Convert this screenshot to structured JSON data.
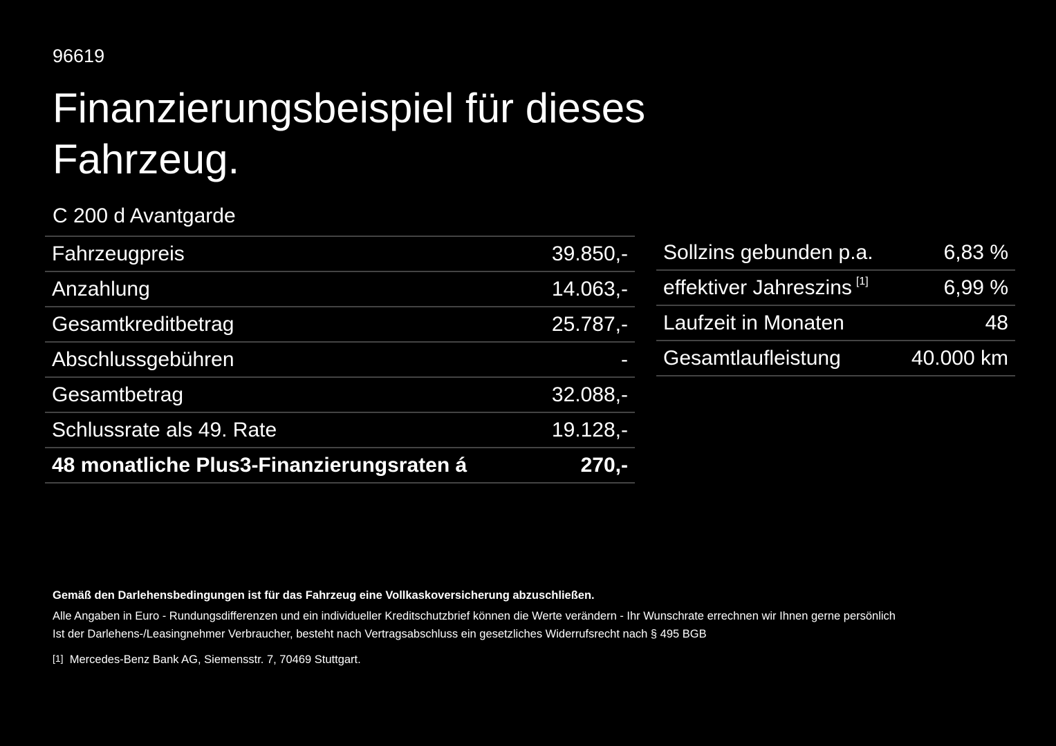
{
  "header": {
    "id": "96619",
    "title_line1": "Finanzierungsbeispiel für dieses",
    "title_line2": "Fahrzeug."
  },
  "model": "C 200 d Avantgarde",
  "left_table": {
    "rows": [
      [
        "Fahrzeugpreis",
        "39.850,-"
      ],
      [
        "Anzahlung",
        "14.063,-"
      ],
      [
        "Gesamtkreditbetrag",
        "25.787,-"
      ],
      [
        "Abschlussgebühren",
        "-"
      ],
      [
        "Gesamtbetrag",
        "32.088,-"
      ],
      [
        "Schlussrate als 49. Rate",
        "19.128,-"
      ],
      [
        "48 monatliche Plus3-Finanzierungsraten á",
        "270,-"
      ]
    ]
  },
  "right_table": {
    "rows": [
      [
        "Sollzins gebunden p.a.",
        "",
        "6,83 %"
      ],
      [
        "effektiver Jahreszins",
        "[1]",
        "6,99 %"
      ],
      [
        "Laufzeit in Monaten",
        "",
        "48"
      ],
      [
        "Gesamtlaufleistung",
        "",
        "40.000 km"
      ]
    ]
  },
  "footer": {
    "bold": "Gemäß den Darlehensbedingungen ist für das Fahrzeug eine Vollkaskoversicherung abzuschließen.",
    "line1": "Alle Angaben in Euro - Rundungsdifferenzen und ein individueller Kreditschutzbrief können die Werte verändern - Ihr Wunschrate errechnen wir Ihnen gerne persönlich",
    "line2": "Ist der Darlehens-/Leasingnehmer Verbraucher, besteht nach Vertragsabschluss ein gesetzliches Widerrufsrecht nach § 495 BGB",
    "note_mark": "[1]",
    "note_text": "Mercedes-Benz Bank AG, Siemensstr. 7, 70469 Stuttgart."
  }
}
